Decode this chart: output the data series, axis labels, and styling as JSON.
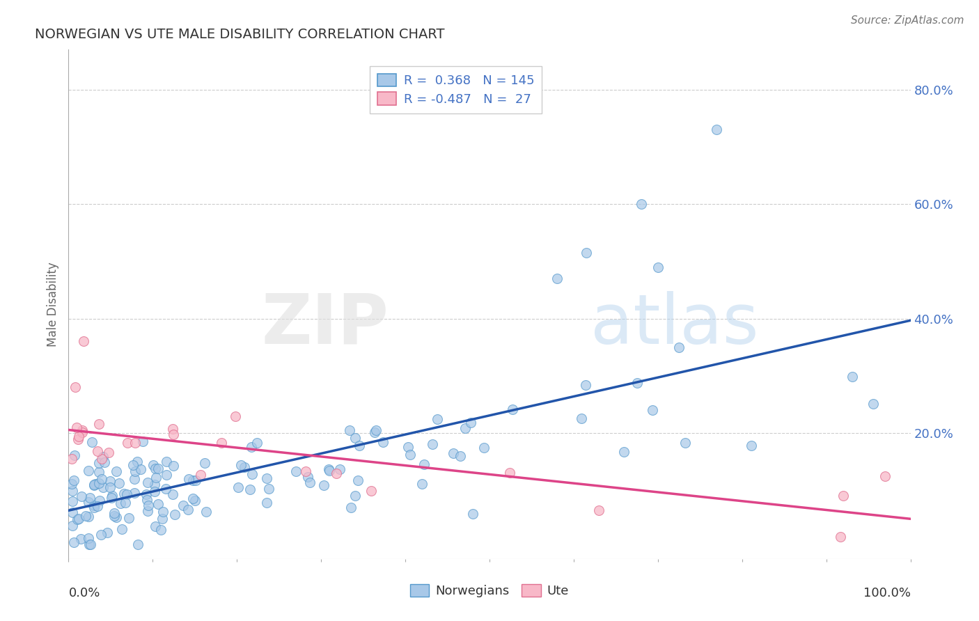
{
  "title": "NORWEGIAN VS UTE MALE DISABILITY CORRELATION CHART",
  "source": "Source: ZipAtlas.com",
  "ylabel": "Male Disability",
  "xmin": 0.0,
  "xmax": 1.0,
  "ymin": -0.02,
  "ymax": 0.87,
  "yticks": [
    0.0,
    0.2,
    0.4,
    0.6,
    0.8
  ],
  "ytick_labels": [
    "",
    "20.0%",
    "40.0%",
    "60.0%",
    "80.0%"
  ],
  "legend1_r": " 0.368",
  "legend1_n": "145",
  "legend2_r": "-0.487",
  "legend2_n": " 27",
  "blue_fill": "#a8c8e8",
  "blue_edge": "#5599cc",
  "pink_fill": "#f8b8c8",
  "pink_edge": "#e07090",
  "blue_line_color": "#2255aa",
  "pink_line_color": "#dd4488",
  "background_color": "#ffffff",
  "grid_color": "#cccccc",
  "title_color": "#333333",
  "right_tick_color": "#4472c4",
  "watermark_zip_color": "#dddddd",
  "watermark_atlas_color": "#aaccee"
}
